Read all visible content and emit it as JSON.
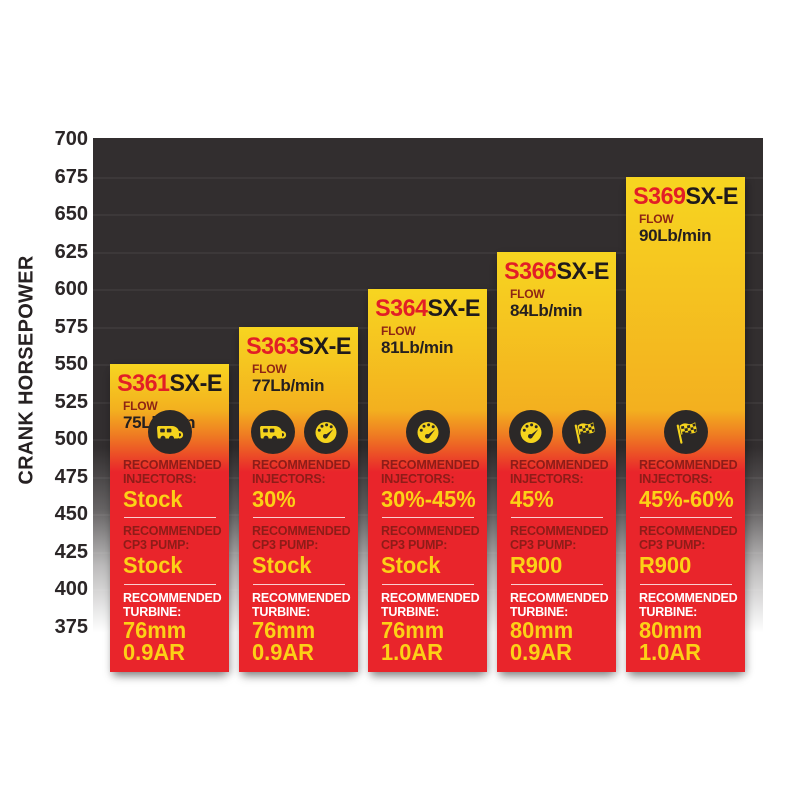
{
  "chart_data": {
    "type": "bar",
    "title": "",
    "xlabel": "",
    "ylabel": "CRANK HORSEPOWER",
    "ylim": [
      375,
      700
    ],
    "ytick_step": 25,
    "yticks": [
      700,
      675,
      650,
      625,
      600,
      575,
      550,
      525,
      500,
      475,
      450,
      425,
      400,
      375
    ],
    "grid": true,
    "legend": "none",
    "categories": [
      "S361SX-E",
      "S363SX-E",
      "S364SX-E",
      "S366SX-E",
      "S369SX-E"
    ],
    "values": [
      550,
      575,
      600,
      625,
      675
    ],
    "bars": [
      {
        "model_prefix": "S361",
        "model_suffix": "SX-E",
        "flow_label": "FLOW",
        "flow_value": "75Lb/min",
        "crank_horsepower": 550,
        "icons": [
          "camper-icon"
        ],
        "injectors_label": "RECOMMENDED INJECTORS:",
        "injectors_value": "Stock",
        "cp3_label": "RECOMMENDED CP3 PUMP:",
        "cp3_value": "Stock",
        "turbine_label": "RECOMMENDED TURBINE:",
        "turbine_size": "76mm",
        "turbine_ar": "0.9AR"
      },
      {
        "model_prefix": "S363",
        "model_suffix": "SX-E",
        "flow_label": "FLOW",
        "flow_value": "77Lb/min",
        "crank_horsepower": 575,
        "icons": [
          "camper-icon",
          "gauge-icon"
        ],
        "injectors_label": "RECOMMENDED INJECTORS:",
        "injectors_value": "30%",
        "cp3_label": "RECOMMENDED CP3 PUMP:",
        "cp3_value": "Stock",
        "turbine_label": "RECOMMENDED TURBINE:",
        "turbine_size": "76mm",
        "turbine_ar": "0.9AR"
      },
      {
        "model_prefix": "S364",
        "model_suffix": "SX-E",
        "flow_label": "FLOW",
        "flow_value": "81Lb/min",
        "crank_horsepower": 600,
        "icons": [
          "gauge-icon"
        ],
        "injectors_label": "RECOMMENDED INJECTORS:",
        "injectors_value": "30%-45%",
        "cp3_label": "RECOMMENDED CP3 PUMP:",
        "cp3_value": "Stock",
        "turbine_label": "RECOMMENDED TURBINE:",
        "turbine_size": "76mm",
        "turbine_ar": "1.0AR"
      },
      {
        "model_prefix": "S366",
        "model_suffix": "SX-E",
        "flow_label": "FLOW",
        "flow_value": "84Lb/min",
        "crank_horsepower": 625,
        "icons": [
          "gauge-icon",
          "flag-icon"
        ],
        "injectors_label": "RECOMMENDED INJECTORS:",
        "injectors_value": "45%",
        "cp3_label": "RECOMMENDED CP3 PUMP:",
        "cp3_value": "R900",
        "turbine_label": "RECOMMENDED TURBINE:",
        "turbine_size": "80mm",
        "turbine_ar": "0.9AR"
      },
      {
        "model_prefix": "S369",
        "model_suffix": "SX-E",
        "flow_label": "FLOW",
        "flow_value": "90Lb/min",
        "crank_horsepower": 675,
        "icons": [
          "flag-icon"
        ],
        "injectors_label": "RECOMMENDED INJECTORS:",
        "injectors_value": "45%-60%",
        "cp3_label": "RECOMMENDED CP3 PUMP:",
        "cp3_value": "R900",
        "turbine_label": "RECOMMENDED TURBINE:",
        "turbine_size": "80mm",
        "turbine_ar": "1.0AR"
      }
    ]
  },
  "colors": {
    "bar_yellow": "#f7d520",
    "bar_orange": "#ef7e22",
    "bar_red": "#e9252b",
    "model_red": "#e21e26",
    "model_black": "#1f1a1b",
    "label_maroon": "#8e1c18",
    "flow_label_maroon": "#8e2414",
    "value_yellow": "#fcd116",
    "turbine_label_white": "#ffffff",
    "plot_background": "#322e2f",
    "axis_text": "#2b2627",
    "icon_circle": "#2b2827"
  }
}
